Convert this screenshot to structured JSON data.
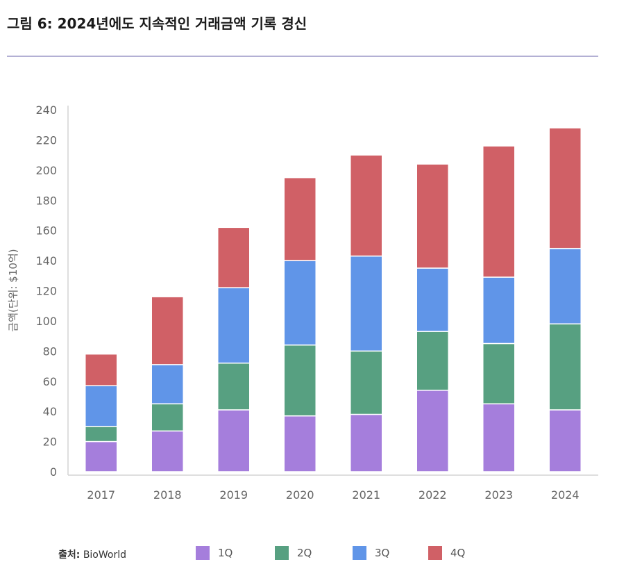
{
  "title": "그림 6: 2024년에도 지속적인 거래금액 기록 경신",
  "source": {
    "label": "출처:",
    "name": "BioWorld"
  },
  "chart_data": {
    "type": "bar",
    "stacked": true,
    "title": "그림 6: 2024년에도 지속적인 거래금액 기록 경신",
    "xlabel": "",
    "ylabel": "금액(단위: $10억)",
    "ylim": [
      0,
      240
    ],
    "yticks": [
      0,
      20,
      40,
      60,
      80,
      100,
      120,
      140,
      160,
      180,
      200,
      220,
      240
    ],
    "categories": [
      "2017",
      "2018",
      "2019",
      "2020",
      "2021",
      "2022",
      "2023",
      "2024"
    ],
    "legend_position": "bottom",
    "grid": false,
    "series": [
      {
        "name": "1Q",
        "color": "#a57edc",
        "values": [
          20,
          27,
          41,
          37,
          38,
          54,
          45,
          41
        ]
      },
      {
        "name": "2Q",
        "color": "#57a081",
        "values": [
          10,
          18,
          31,
          47,
          42,
          39,
          40,
          57
        ]
      },
      {
        "name": "3Q",
        "color": "#6095e8",
        "values": [
          27,
          26,
          50,
          56,
          63,
          42,
          44,
          50
        ]
      },
      {
        "name": "4Q",
        "color": "#d06066",
        "values": [
          21,
          45,
          40,
          55,
          67,
          69,
          87,
          80
        ]
      }
    ]
  }
}
